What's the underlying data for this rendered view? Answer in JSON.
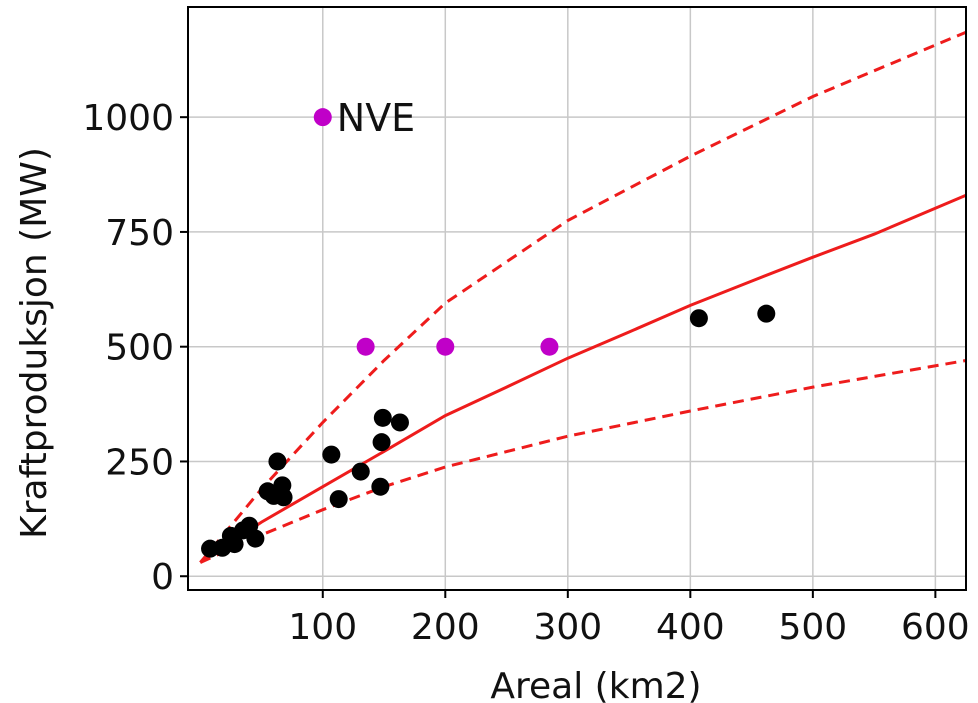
{
  "chart_data": {
    "type": "scatter",
    "xlabel": "Areal (km2)",
    "ylabel": "Kraftproduksjon (MW)",
    "xlim": [
      -10,
      625
    ],
    "ylim": [
      -30,
      1240
    ],
    "x_ticks": [
      100,
      200,
      300,
      400,
      500,
      600
    ],
    "y_ticks": [
      0,
      250,
      500,
      750,
      1000
    ],
    "grid": true,
    "colors": {
      "black_points": "#000000",
      "magenta_points": "#c000c8",
      "fit_curve": "#ee1c1c",
      "grid": "#c8c8c8"
    },
    "series": [
      {
        "kind": "scatter",
        "color": "#000000",
        "points": [
          {
            "x": 8,
            "y": 60
          },
          {
            "x": 18,
            "y": 62
          },
          {
            "x": 25,
            "y": 88
          },
          {
            "x": 28,
            "y": 70
          },
          {
            "x": 35,
            "y": 100
          },
          {
            "x": 40,
            "y": 110
          },
          {
            "x": 45,
            "y": 82
          },
          {
            "x": 55,
            "y": 185
          },
          {
            "x": 60,
            "y": 175
          },
          {
            "x": 63,
            "y": 250
          },
          {
            "x": 67,
            "y": 198
          },
          {
            "x": 68,
            "y": 172
          },
          {
            "x": 107,
            "y": 265
          },
          {
            "x": 113,
            "y": 168
          },
          {
            "x": 131,
            "y": 228
          },
          {
            "x": 147,
            "y": 195
          },
          {
            "x": 148,
            "y": 292
          },
          {
            "x": 149,
            "y": 345
          },
          {
            "x": 163,
            "y": 335
          },
          {
            "x": 407,
            "y": 562
          },
          {
            "x": 462,
            "y": 572
          }
        ]
      },
      {
        "kind": "scatter",
        "color": "#c000c8",
        "points": [
          {
            "x": 100,
            "y": 1000
          },
          {
            "x": 135,
            "y": 500
          },
          {
            "x": 200,
            "y": 500
          },
          {
            "x": 285,
            "y": 500
          }
        ]
      },
      {
        "kind": "line",
        "style": "solid",
        "color": "#ee1c1c",
        "points": [
          {
            "x": 0,
            "y": 30
          },
          {
            "x": 50,
            "y": 118
          },
          {
            "x": 100,
            "y": 195
          },
          {
            "x": 150,
            "y": 272
          },
          {
            "x": 200,
            "y": 350
          },
          {
            "x": 250,
            "y": 412
          },
          {
            "x": 300,
            "y": 475
          },
          {
            "x": 350,
            "y": 532
          },
          {
            "x": 400,
            "y": 590
          },
          {
            "x": 450,
            "y": 643
          },
          {
            "x": 500,
            "y": 695
          },
          {
            "x": 550,
            "y": 745
          },
          {
            "x": 625,
            "y": 830
          }
        ]
      },
      {
        "kind": "line",
        "style": "dashed",
        "color": "#ee1c1c",
        "points": [
          {
            "x": 0,
            "y": 30
          },
          {
            "x": 50,
            "y": 190
          },
          {
            "x": 100,
            "y": 335
          },
          {
            "x": 150,
            "y": 470
          },
          {
            "x": 200,
            "y": 595
          },
          {
            "x": 300,
            "y": 775
          },
          {
            "x": 400,
            "y": 915
          },
          {
            "x": 500,
            "y": 1045
          },
          {
            "x": 625,
            "y": 1185
          }
        ]
      },
      {
        "kind": "line",
        "style": "dashed",
        "color": "#ee1c1c",
        "points": [
          {
            "x": 0,
            "y": 30
          },
          {
            "x": 50,
            "y": 90
          },
          {
            "x": 100,
            "y": 145
          },
          {
            "x": 150,
            "y": 195
          },
          {
            "x": 200,
            "y": 238
          },
          {
            "x": 300,
            "y": 305
          },
          {
            "x": 400,
            "y": 360
          },
          {
            "x": 500,
            "y": 412
          },
          {
            "x": 625,
            "y": 470
          }
        ]
      }
    ],
    "annotations": [
      {
        "text": "NVE",
        "x": 100,
        "y": 1000
      }
    ]
  }
}
